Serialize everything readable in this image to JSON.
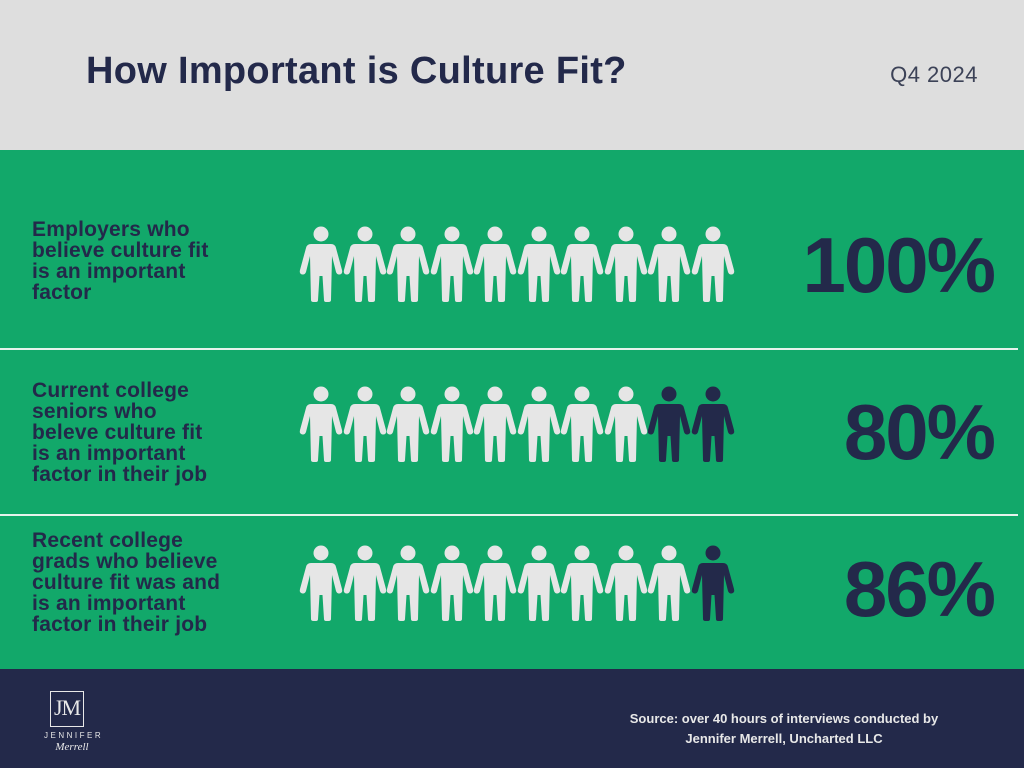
{
  "header": {
    "title": "How Important is Culture Fit?",
    "period": "Q4 2024"
  },
  "colors": {
    "header_bg": "#dedede",
    "panel_bg": "#12a86a",
    "footer_bg": "#23294a",
    "icon_filled": "#e6e6e6",
    "icon_highlight": "#23294a",
    "text_dark": "#23294a"
  },
  "chart_data": {
    "type": "pictograph",
    "icon": "person-icon",
    "icons_per_row": 10,
    "rows": [
      {
        "label": "Employers who believe culture fit is an important factor",
        "label_lines": [
          "Employers who",
          "believe culture fit",
          "is an important",
          "factor"
        ],
        "value": 100,
        "display": "100%"
      },
      {
        "label": "Current college seniors who beleve culture fit is an important factor in their job",
        "label_lines": [
          "Current college",
          "seniors who",
          "beleve culture fit",
          "is an important",
          "factor in their job"
        ],
        "value": 80,
        "display": "80%"
      },
      {
        "label": "Recent college grads who believe culture fit was and is an important factor in their job",
        "label_lines": [
          "Recent college",
          "grads who believe",
          "culture fit was and",
          "is an important",
          "factor in their job"
        ],
        "value": 86,
        "display": "86%"
      }
    ]
  },
  "footer": {
    "logo_monogram": "JM",
    "logo_first": "JENNIFER",
    "logo_last": "Merrell",
    "source_line1": "Source:  over 40 hours of interviews conducted by",
    "source_line2": "Jennifer Merrell, Uncharted LLC"
  }
}
